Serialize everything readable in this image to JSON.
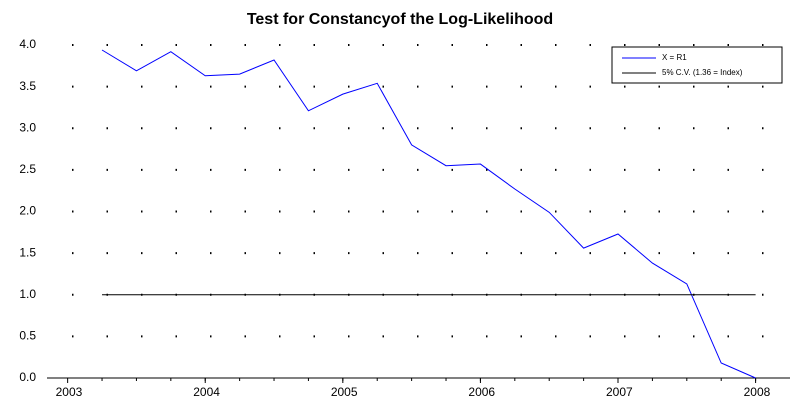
{
  "chart_data": {
    "type": "line",
    "title": "Test for Constancyof the Log-Likelihood",
    "x": [
      2003.25,
      2003.5,
      2003.75,
      2004,
      2004.25,
      2004.5,
      2004.75,
      2005,
      2005.25,
      2005.5,
      2005.75,
      2006,
      2006.25,
      2006.5,
      2006.75,
      2007,
      2007.25,
      2007.5,
      2007.75,
      2008
    ],
    "series": [
      {
        "name": "X = R1",
        "color": "#0000ff",
        "values": [
          3.94,
          3.69,
          3.92,
          3.63,
          3.65,
          3.82,
          3.21,
          3.41,
          3.54,
          2.8,
          2.55,
          2.57,
          2.27,
          1.99,
          1.56,
          1.73,
          1.38,
          1.13,
          0.18,
          0.0
        ]
      },
      {
        "name": "5% C.V. (1.36 = Index)",
        "color": "#000000",
        "values": [
          1,
          1,
          1,
          1,
          1,
          1,
          1,
          1,
          1,
          1,
          1,
          1,
          1,
          1,
          1,
          1,
          1,
          1,
          1,
          1
        ]
      }
    ],
    "xlim": [
      2002.85,
      2008.25
    ],
    "xticks": [
      2003,
      2004,
      2005,
      2006,
      2007,
      2008
    ],
    "ylim": [
      0,
      4
    ],
    "yticks": [
      {
        "value": 0,
        "label": "0.0"
      },
      0.5,
      {
        "value": 1,
        "label": "1.0"
      },
      1.5,
      {
        "value": 2,
        "label": "2.0"
      },
      2.5,
      {
        "value": 3,
        "label": "3.0"
      },
      3.5,
      {
        "value": 4,
        "label": "4.0"
      }
    ],
    "grid": true,
    "legend": "upper-right"
  }
}
